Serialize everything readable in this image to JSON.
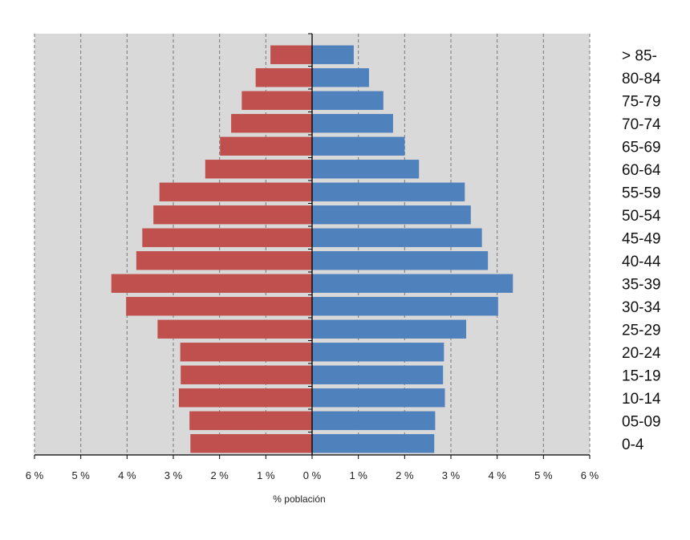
{
  "chart_data": {
    "type": "bar",
    "orientation": "horizontal",
    "layout": "population-pyramid",
    "xlabel": "% población",
    "xlim": [
      -6,
      6
    ],
    "x_ticks": [
      -6,
      -5,
      -4,
      -3,
      -2,
      -1,
      0,
      1,
      2,
      3,
      4,
      5,
      6
    ],
    "x_tick_labels": [
      "6 %",
      "5 %",
      "4 %",
      "3 %",
      "2 %",
      "1 %",
      "0 %",
      "1 %",
      "2 %",
      "3 %",
      "4 %",
      "5 %",
      "6 %"
    ],
    "grid": true,
    "categories": [
      "> 85-",
      "80-84",
      "75-79",
      "70-74",
      "65-69",
      "60-64",
      "55-59",
      "50-54",
      "45-49",
      "40-44",
      "35-39",
      "30-34",
      "25-29",
      "20-24",
      "15-19",
      "10-14",
      "05-09",
      "0-4"
    ],
    "series": [
      {
        "side": "left",
        "color": "#c0504d",
        "values": [
          0.9,
          1.22,
          1.52,
          1.75,
          1.99,
          2.31,
          3.3,
          3.43,
          3.67,
          3.8,
          4.34,
          4.02,
          3.34,
          2.85,
          2.84,
          2.88,
          2.65,
          2.63
        ]
      },
      {
        "side": "right",
        "color": "#4f81bd",
        "values": [
          0.9,
          1.23,
          1.54,
          1.75,
          2.0,
          2.31,
          3.3,
          3.43,
          3.67,
          3.8,
          4.34,
          4.02,
          3.33,
          2.85,
          2.83,
          2.87,
          2.66,
          2.64
        ]
      }
    ],
    "plot_background": "#d9d9d9",
    "grid_color": "#777777"
  }
}
